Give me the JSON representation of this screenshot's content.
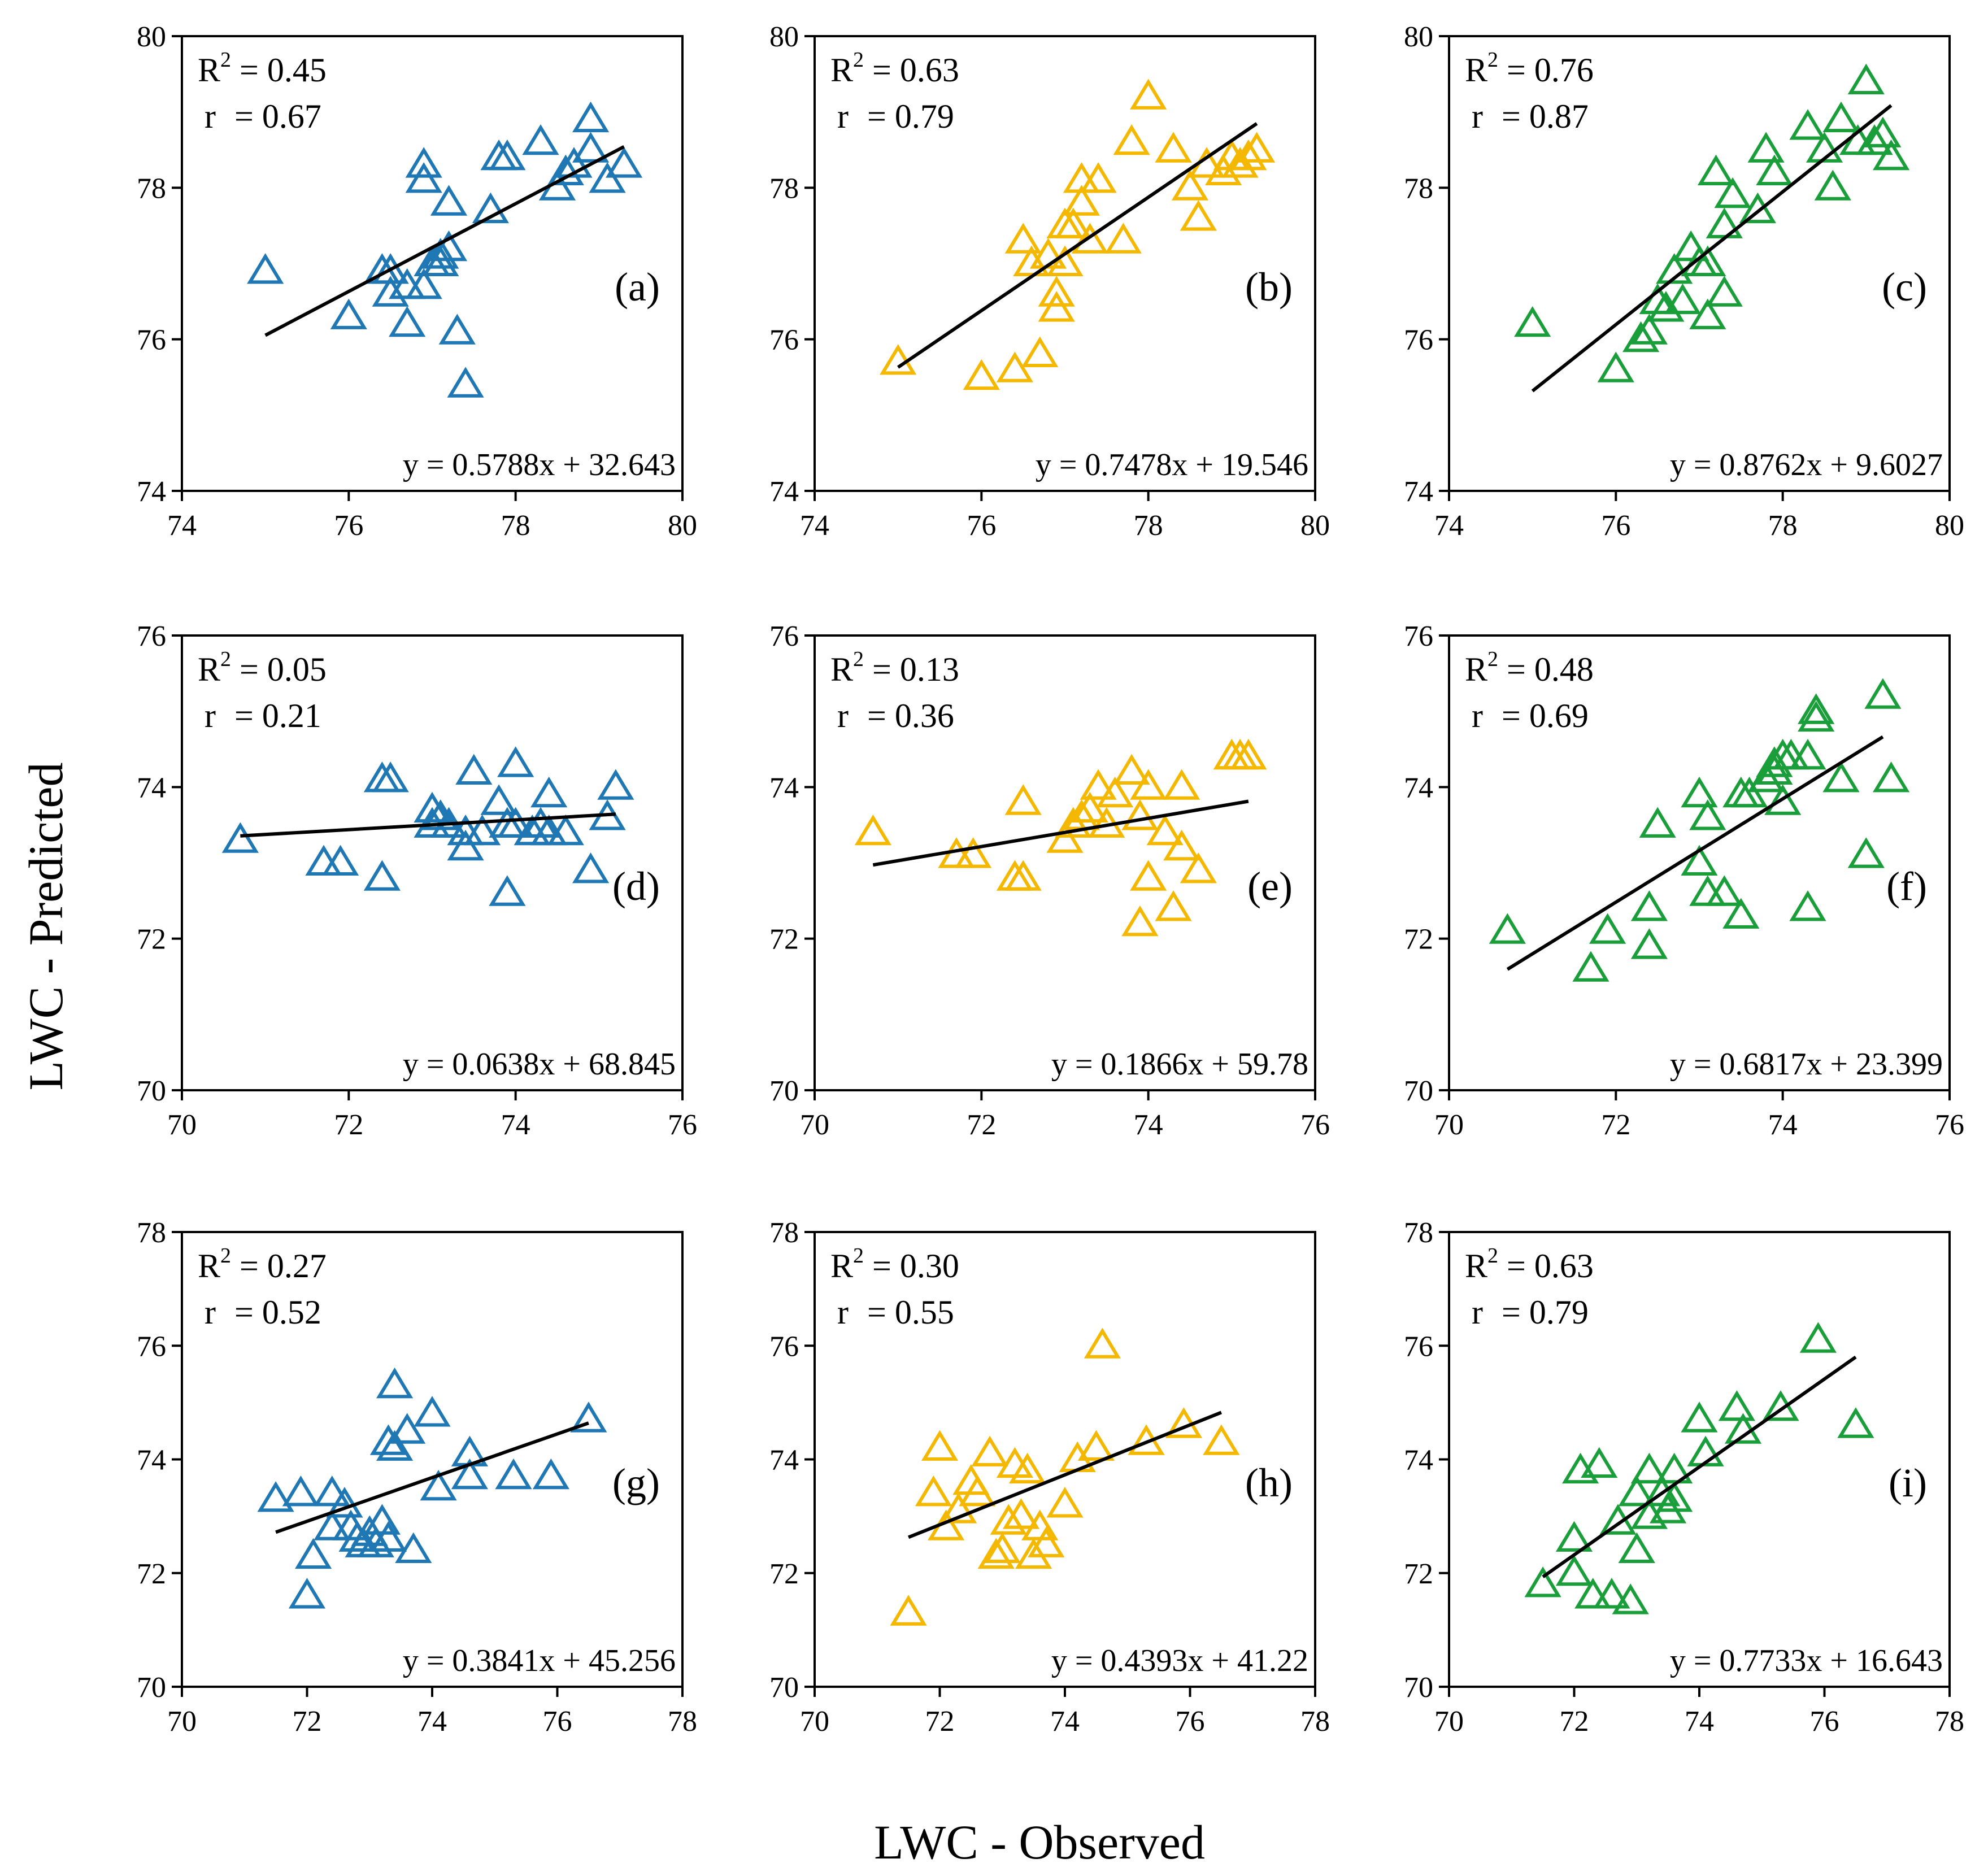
{
  "figure": {
    "xlabel": "LWC - Observed",
    "ylabel": "LWC - Predicted"
  },
  "chart_data": [
    {
      "type": "scatter",
      "label": "(a)",
      "color": "#1f77b4",
      "r2_label": "R",
      "r2_sup": "2",
      "r2_value": " = 0.45",
      "r_label": "r",
      "r_value": " = 0.67",
      "equation": "y = 0.5788x + 32.643",
      "xlim": [
        74,
        80
      ],
      "ylim": [
        74,
        80
      ],
      "xticks": [
        "74",
        "76",
        "78",
        "80"
      ],
      "yticks": [
        "74",
        "76",
        "78",
        "80"
      ],
      "fit": {
        "slope": 0.5788,
        "intercept": 32.643,
        "x_range": [
          75.0,
          79.3
        ]
      },
      "points": [
        [
          75.0,
          76.9
        ],
        [
          76.0,
          76.3
        ],
        [
          76.4,
          76.9
        ],
        [
          76.5,
          76.9
        ],
        [
          76.5,
          76.6
        ],
        [
          76.7,
          76.7
        ],
        [
          76.7,
          76.2
        ],
        [
          76.9,
          76.7
        ],
        [
          76.9,
          78.3
        ],
        [
          76.9,
          78.1
        ],
        [
          77.0,
          77.0
        ],
        [
          77.1,
          77.1
        ],
        [
          77.1,
          77.0
        ],
        [
          77.2,
          77.2
        ],
        [
          77.2,
          77.8
        ],
        [
          77.3,
          76.1
        ],
        [
          77.4,
          75.4
        ],
        [
          77.7,
          77.7
        ],
        [
          77.8,
          78.4
        ],
        [
          77.9,
          78.4
        ],
        [
          78.3,
          78.6
        ],
        [
          78.5,
          78.0
        ],
        [
          78.6,
          78.2
        ],
        [
          78.7,
          78.3
        ],
        [
          78.9,
          78.5
        ],
        [
          78.9,
          78.9
        ],
        [
          79.1,
          78.1
        ],
        [
          79.3,
          78.3
        ]
      ]
    },
    {
      "type": "scatter",
      "label": "(b)",
      "color": "#f5b800",
      "r2_label": "R",
      "r2_sup": "2",
      "r2_value": " = 0.63",
      "r_label": "r",
      "r_value": " = 0.79",
      "equation": "y = 0.7478x + 19.546",
      "xlim": [
        74,
        80
      ],
      "ylim": [
        74,
        80
      ],
      "xticks": [
        "74",
        "76",
        "78",
        "80"
      ],
      "yticks": [
        "74",
        "76",
        "78",
        "80"
      ],
      "fit": {
        "slope": 0.7478,
        "intercept": 19.546,
        "x_range": [
          75.0,
          79.3
        ]
      },
      "points": [
        [
          75.0,
          75.7
        ],
        [
          76.0,
          75.5
        ],
        [
          76.4,
          75.6
        ],
        [
          76.5,
          77.3
        ],
        [
          76.6,
          77.0
        ],
        [
          76.7,
          75.8
        ],
        [
          76.8,
          77.1
        ],
        [
          76.9,
          76.6
        ],
        [
          76.9,
          76.4
        ],
        [
          77.0,
          77.0
        ],
        [
          77.0,
          77.5
        ],
        [
          77.1,
          77.5
        ],
        [
          77.2,
          77.8
        ],
        [
          77.2,
          78.1
        ],
        [
          77.3,
          77.3
        ],
        [
          77.4,
          78.1
        ],
        [
          77.7,
          77.3
        ],
        [
          77.8,
          78.6
        ],
        [
          78.0,
          79.2
        ],
        [
          78.3,
          78.5
        ],
        [
          78.5,
          78.0
        ],
        [
          78.6,
          77.6
        ],
        [
          78.7,
          78.3
        ],
        [
          78.9,
          78.2
        ],
        [
          79.0,
          78.4
        ],
        [
          79.1,
          78.3
        ],
        [
          79.2,
          78.4
        ],
        [
          79.3,
          78.5
        ]
      ]
    },
    {
      "type": "scatter",
      "label": "(c)",
      "color": "#1a9e3a",
      "r2_label": "R",
      "r2_sup": "2",
      "r2_value": " = 0.76",
      "r_label": "r",
      "r_value": " = 0.87",
      "equation": "y = 0.8762x + 9.6027",
      "xlim": [
        74,
        80
      ],
      "ylim": [
        74,
        80
      ],
      "xticks": [
        "74",
        "76",
        "78",
        "80"
      ],
      "yticks": [
        "74",
        "76",
        "78",
        "80"
      ],
      "fit": {
        "slope": 0.8762,
        "intercept": 9.6027,
        "x_range": [
          75.0,
          79.3
        ]
      },
      "points": [
        [
          75.0,
          76.2
        ],
        [
          76.0,
          75.6
        ],
        [
          76.3,
          76.0
        ],
        [
          76.4,
          76.1
        ],
        [
          76.5,
          76.5
        ],
        [
          76.6,
          76.4
        ],
        [
          76.7,
          76.9
        ],
        [
          76.8,
          76.5
        ],
        [
          76.9,
          77.2
        ],
        [
          77.0,
          77.0
        ],
        [
          77.1,
          77.0
        ],
        [
          77.1,
          76.3
        ],
        [
          77.2,
          78.2
        ],
        [
          77.3,
          77.5
        ],
        [
          77.3,
          76.6
        ],
        [
          77.4,
          77.9
        ],
        [
          77.7,
          77.7
        ],
        [
          77.8,
          78.5
        ],
        [
          77.9,
          78.2
        ],
        [
          78.3,
          78.8
        ],
        [
          78.5,
          78.5
        ],
        [
          78.6,
          78.0
        ],
        [
          78.7,
          78.9
        ],
        [
          78.9,
          78.6
        ],
        [
          79.0,
          79.4
        ],
        [
          79.1,
          78.6
        ],
        [
          79.2,
          78.7
        ],
        [
          79.3,
          78.4
        ]
      ]
    },
    {
      "type": "scatter",
      "label": "(d)",
      "color": "#1f77b4",
      "r2_label": "R",
      "r2_sup": "2",
      "r2_value": " = 0.05",
      "r_label": "r",
      "r_value": " = 0.21",
      "equation": "y = 0.0638x + 68.845",
      "xlim": [
        70,
        76
      ],
      "ylim": [
        70,
        76
      ],
      "xticks": [
        "70",
        "72",
        "74",
        "76"
      ],
      "yticks": [
        "70",
        "72",
        "74",
        "76"
      ],
      "fit": {
        "slope": 0.0638,
        "intercept": 68.845,
        "x_range": [
          70.7,
          75.2
        ]
      },
      "points": [
        [
          70.7,
          73.3
        ],
        [
          71.7,
          73.0
        ],
        [
          71.9,
          73.0
        ],
        [
          72.4,
          74.1
        ],
        [
          72.5,
          74.1
        ],
        [
          72.4,
          72.8
        ],
        [
          73.0,
          73.7
        ],
        [
          73.0,
          73.5
        ],
        [
          73.1,
          73.6
        ],
        [
          73.2,
          73.5
        ],
        [
          73.4,
          73.2
        ],
        [
          73.4,
          73.4
        ],
        [
          73.5,
          74.2
        ],
        [
          73.6,
          73.4
        ],
        [
          73.8,
          73.8
        ],
        [
          73.9,
          73.5
        ],
        [
          73.9,
          72.6
        ],
        [
          74.0,
          74.3
        ],
        [
          74.0,
          73.5
        ],
        [
          74.2,
          73.4
        ],
        [
          74.3,
          73.5
        ],
        [
          74.4,
          73.4
        ],
        [
          74.4,
          73.9
        ],
        [
          74.6,
          73.4
        ],
        [
          74.9,
          72.9
        ],
        [
          75.1,
          73.6
        ],
        [
          75.2,
          74.0
        ]
      ]
    },
    {
      "type": "scatter",
      "label": "(e)",
      "color": "#f5b800",
      "r2_label": "R",
      "r2_sup": "2",
      "r2_value": " = 0.13",
      "r_label": "r",
      "r_value": " = 0.36",
      "equation": "y = 0.1866x + 59.78",
      "xlim": [
        70,
        76
      ],
      "ylim": [
        70,
        76
      ],
      "xticks": [
        "70",
        "72",
        "74",
        "76"
      ],
      "yticks": [
        "70",
        "72",
        "74",
        "76"
      ],
      "fit": {
        "slope": 0.1866,
        "intercept": 59.78,
        "x_range": [
          70.7,
          75.2
        ]
      },
      "points": [
        [
          70.7,
          73.4
        ],
        [
          71.7,
          73.1
        ],
        [
          71.9,
          73.1
        ],
        [
          72.4,
          72.8
        ],
        [
          72.5,
          72.8
        ],
        [
          72.5,
          73.8
        ],
        [
          73.0,
          73.3
        ],
        [
          73.1,
          73.5
        ],
        [
          73.2,
          73.6
        ],
        [
          73.3,
          73.7
        ],
        [
          73.4,
          74.0
        ],
        [
          73.5,
          73.5
        ],
        [
          73.6,
          73.9
        ],
        [
          73.8,
          74.2
        ],
        [
          73.9,
          73.6
        ],
        [
          73.9,
          72.2
        ],
        [
          74.0,
          72.8
        ],
        [
          74.0,
          74.0
        ],
        [
          74.2,
          73.4
        ],
        [
          74.3,
          72.4
        ],
        [
          74.4,
          73.2
        ],
        [
          74.4,
          74.0
        ],
        [
          74.6,
          72.9
        ],
        [
          75.0,
          74.4
        ],
        [
          75.1,
          74.4
        ],
        [
          75.2,
          74.4
        ]
      ]
    },
    {
      "type": "scatter",
      "label": "(f)",
      "color": "#1a9e3a",
      "r2_label": "R",
      "r2_sup": "2",
      "r2_value": " = 0.48",
      "r_label": "r",
      "r_value": " = 0.69",
      "equation": "y = 0.6817x + 23.399",
      "xlim": [
        70,
        76
      ],
      "ylim": [
        70,
        76
      ],
      "xticks": [
        "70",
        "72",
        "74",
        "76"
      ],
      "yticks": [
        "70",
        "72",
        "74",
        "76"
      ],
      "fit": {
        "slope": 0.6817,
        "intercept": 23.399,
        "x_range": [
          70.7,
          75.2
        ]
      },
      "points": [
        [
          70.7,
          72.1
        ],
        [
          71.7,
          71.6
        ],
        [
          71.9,
          72.1
        ],
        [
          72.4,
          72.4
        ],
        [
          72.4,
          71.9
        ],
        [
          72.5,
          73.5
        ],
        [
          73.0,
          73.9
        ],
        [
          73.0,
          73.0
        ],
        [
          73.1,
          72.6
        ],
        [
          73.1,
          73.6
        ],
        [
          73.3,
          72.6
        ],
        [
          73.5,
          73.9
        ],
        [
          73.5,
          72.3
        ],
        [
          73.6,
          73.9
        ],
        [
          73.8,
          74.1
        ],
        [
          73.9,
          74.2
        ],
        [
          73.9,
          74.3
        ],
        [
          74.0,
          73.8
        ],
        [
          74.0,
          74.4
        ],
        [
          74.1,
          74.4
        ],
        [
          74.3,
          74.4
        ],
        [
          74.3,
          72.4
        ],
        [
          74.4,
          75.0
        ],
        [
          74.4,
          74.9
        ],
        [
          74.7,
          74.1
        ],
        [
          75.0,
          73.1
        ],
        [
          75.2,
          75.2
        ],
        [
          75.3,
          74.1
        ]
      ]
    },
    {
      "type": "scatter",
      "label": "(g)",
      "color": "#1f77b4",
      "r2_label": "R",
      "r2_sup": "2",
      "r2_value": " = 0.27",
      "r_label": "r",
      "r_value": " = 0.52",
      "equation": "y = 0.3841x + 45.256",
      "xlim": [
        70,
        78
      ],
      "ylim": [
        70,
        78
      ],
      "xticks": [
        "70",
        "72",
        "74",
        "76",
        "78"
      ],
      "yticks": [
        "70",
        "72",
        "74",
        "76",
        "78"
      ],
      "fit": {
        "slope": 0.3841,
        "intercept": 45.256,
        "x_range": [
          71.5,
          76.5
        ]
      },
      "points": [
        [
          71.5,
          73.3
        ],
        [
          71.9,
          73.4
        ],
        [
          72.0,
          71.6
        ],
        [
          72.1,
          72.3
        ],
        [
          72.4,
          72.8
        ],
        [
          72.4,
          73.4
        ],
        [
          72.6,
          73.2
        ],
        [
          72.7,
          72.8
        ],
        [
          72.8,
          72.6
        ],
        [
          72.9,
          72.5
        ],
        [
          73.0,
          72.7
        ],
        [
          73.1,
          72.5
        ],
        [
          73.2,
          72.9
        ],
        [
          73.3,
          72.6
        ],
        [
          73.3,
          74.3
        ],
        [
          73.4,
          75.3
        ],
        [
          73.4,
          74.2
        ],
        [
          73.6,
          74.5
        ],
        [
          73.7,
          72.4
        ],
        [
          74.0,
          74.8
        ],
        [
          74.1,
          73.5
        ],
        [
          74.6,
          74.1
        ],
        [
          74.6,
          73.7
        ],
        [
          75.3,
          73.7
        ],
        [
          75.9,
          73.7
        ],
        [
          76.5,
          74.7
        ]
      ]
    },
    {
      "type": "scatter",
      "label": "(h)",
      "color": "#f5b800",
      "r2_label": "R",
      "r2_sup": "2",
      "r2_value": " = 0.30",
      "r_label": "r",
      "r_value": " = 0.55",
      "equation": "y = 0.4393x + 41.22",
      "xlim": [
        70,
        78
      ],
      "ylim": [
        70,
        78
      ],
      "xticks": [
        "70",
        "72",
        "74",
        "76",
        "78"
      ],
      "yticks": [
        "70",
        "72",
        "74",
        "76",
        "78"
      ],
      "fit": {
        "slope": 0.4393,
        "intercept": 41.22,
        "x_range": [
          71.5,
          76.5
        ]
      },
      "points": [
        [
          71.5,
          71.3
        ],
        [
          71.9,
          73.4
        ],
        [
          72.0,
          74.2
        ],
        [
          72.1,
          72.8
        ],
        [
          72.3,
          73.1
        ],
        [
          72.5,
          73.6
        ],
        [
          72.6,
          73.4
        ],
        [
          72.8,
          74.1
        ],
        [
          72.9,
          72.3
        ],
        [
          73.0,
          72.4
        ],
        [
          73.1,
          72.9
        ],
        [
          73.2,
          73.9
        ],
        [
          73.3,
          73.0
        ],
        [
          73.4,
          73.8
        ],
        [
          73.5,
          72.3
        ],
        [
          73.6,
          72.8
        ],
        [
          73.7,
          72.5
        ],
        [
          74.0,
          73.2
        ],
        [
          74.2,
          74.0
        ],
        [
          74.5,
          74.2
        ],
        [
          74.6,
          76.0
        ],
        [
          75.3,
          74.3
        ],
        [
          75.9,
          74.6
        ],
        [
          76.5,
          74.3
        ]
      ]
    },
    {
      "type": "scatter",
      "label": "(i)",
      "color": "#1a9e3a",
      "r2_label": "R",
      "r2_sup": "2",
      "r2_value": " = 0.63",
      "r_label": "r",
      "r_value": " = 0.79",
      "equation": "y = 0.7733x + 16.643",
      "xlim": [
        70,
        78
      ],
      "ylim": [
        70,
        78
      ],
      "xticks": [
        "70",
        "72",
        "74",
        "76",
        "78"
      ],
      "yticks": [
        "70",
        "72",
        "74",
        "76",
        "78"
      ],
      "fit": {
        "slope": 0.7733,
        "intercept": 16.643,
        "x_range": [
          71.5,
          76.5
        ]
      },
      "points": [
        [
          71.5,
          71.8
        ],
        [
          72.0,
          72.0
        ],
        [
          72.0,
          72.6
        ],
        [
          72.1,
          73.8
        ],
        [
          72.3,
          71.6
        ],
        [
          72.4,
          73.9
        ],
        [
          72.6,
          71.6
        ],
        [
          72.7,
          72.9
        ],
        [
          72.9,
          71.5
        ],
        [
          73.0,
          72.4
        ],
        [
          73.0,
          73.4
        ],
        [
          73.2,
          73.8
        ],
        [
          73.2,
          73.0
        ],
        [
          73.4,
          73.4
        ],
        [
          73.5,
          73.1
        ],
        [
          73.6,
          73.3
        ],
        [
          73.6,
          73.8
        ],
        [
          74.0,
          74.7
        ],
        [
          74.1,
          74.1
        ],
        [
          74.6,
          74.9
        ],
        [
          74.7,
          74.5
        ],
        [
          75.3,
          74.9
        ],
        [
          75.9,
          76.1
        ],
        [
          76.5,
          74.6
        ]
      ]
    }
  ]
}
